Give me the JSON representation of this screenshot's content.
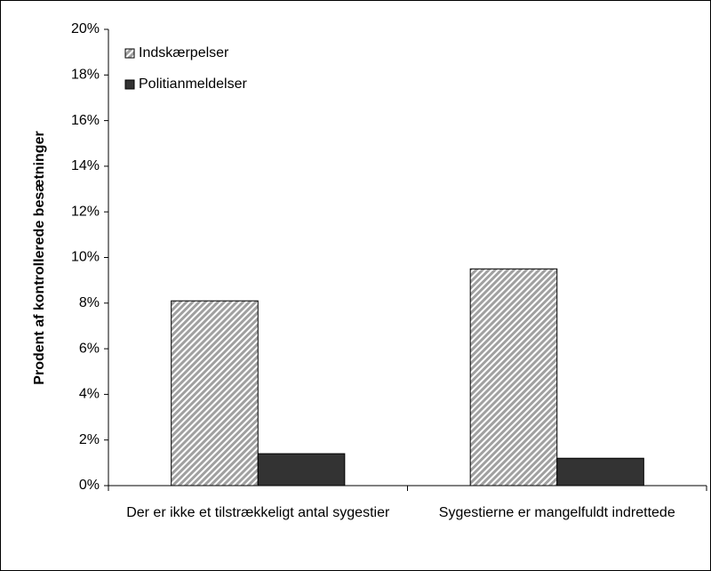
{
  "chart_data": {
    "type": "bar",
    "y_label": "Prodent af kontrollerede besætninger",
    "categories": [
      "Der er ikke et tilstrækkeligt antal sygestier",
      "Sygestierne er mangelfuldt indrettede"
    ],
    "series": [
      {
        "name": "Indskærpelser",
        "color": "#a0a0a0",
        "values": [
          8.1,
          9.5
        ]
      },
      {
        "name": "Politianmeldelser",
        "color": "#333333",
        "values": [
          1.4,
          1.2
        ]
      }
    ],
    "ylim": [
      0,
      20
    ],
    "yticks": [
      {
        "value": 0,
        "label": "0%"
      },
      {
        "value": 2,
        "label": "2%"
      },
      {
        "value": 4,
        "label": "4%"
      },
      {
        "value": 6,
        "label": "6%"
      },
      {
        "value": 8,
        "label": "8%"
      },
      {
        "value": 10,
        "label": "10%"
      },
      {
        "value": 12,
        "label": "12%"
      },
      {
        "value": 14,
        "label": "14%"
      },
      {
        "value": 16,
        "label": "16%"
      },
      {
        "value": 18,
        "label": "18%"
      },
      {
        "value": 20,
        "label": "20%"
      }
    ],
    "legend": "top-left"
  }
}
